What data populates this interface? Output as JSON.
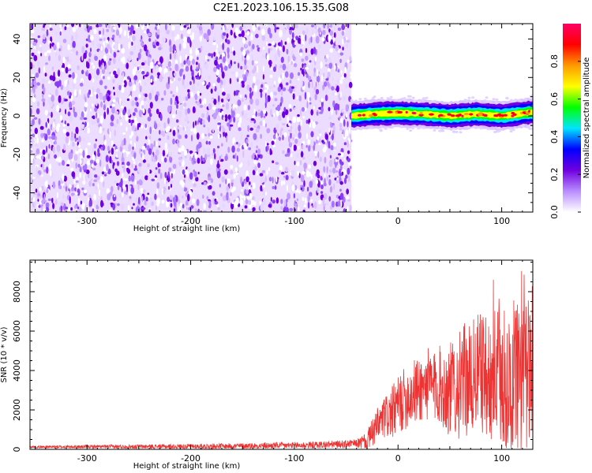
{
  "title": "C2E1.2023.106.15.35.G08",
  "chart_data": [
    {
      "type": "heatmap",
      "xlabel": "Height of straight line (km)",
      "ylabel": "Frequency (Hz)",
      "xlim": [
        -355,
        130
      ],
      "ylim": [
        -50,
        48
      ],
      "xticks": [
        -300,
        -200,
        -100,
        0,
        100
      ],
      "yticks": [
        -40,
        -20,
        0,
        20,
        40
      ],
      "noise_region_x": [
        -355,
        -45
      ],
      "signal_region_x": [
        -45,
        130
      ],
      "signal": {
        "center_freq_hz": 0,
        "band_halfwidth_hz": [
          3,
          6
        ],
        "profile": [
          {
            "x": -45,
            "center": 0
          },
          {
            "x": -25,
            "center": 1
          },
          {
            "x": 0,
            "center": 1.5
          },
          {
            "x": 25,
            "center": 1
          },
          {
            "x": 50,
            "center": 0
          },
          {
            "x": 75,
            "center": 1
          },
          {
            "x": 100,
            "center": 0
          },
          {
            "x": 130,
            "center": 2
          }
        ]
      },
      "colorbar": {
        "label": "Normalized spectral amplitude",
        "range": [
          0,
          1
        ],
        "ticks": [
          0.0,
          0.2,
          0.4,
          0.6,
          0.8
        ],
        "tick_labels": [
          "0.0",
          "0.2",
          "0.4",
          "0.6",
          "0.8"
        ],
        "colors": [
          "#ffffff",
          "#b98cff",
          "#7000e0",
          "#0000ff",
          "#00e5ff",
          "#00ff00",
          "#ffff00",
          "#ff9a00",
          "#ff0000",
          "#ff0066"
        ]
      },
      "grid": false
    },
    {
      "type": "line",
      "xlabel": "Height of straight line (km)",
      "ylabel": "SNR (10 * v/v)",
      "xlim": [
        -355,
        130
      ],
      "ylim": [
        0,
        9600
      ],
      "xticks": [
        -300,
        -200,
        -100,
        0,
        100
      ],
      "yticks": [
        0,
        2000,
        4000,
        6000,
        8000
      ],
      "color": "#ee3333",
      "series": [
        {
          "x": [
            -355,
            -300,
            -250,
            -200,
            -150,
            -100,
            -80,
            -60,
            -40,
            -30,
            -25,
            -20,
            -15,
            -10,
            -5,
            0,
            5,
            10,
            15,
            20,
            25,
            30,
            35,
            40,
            45,
            50,
            55,
            60,
            65,
            70,
            75,
            80,
            85,
            90,
            95,
            100,
            105,
            110,
            115,
            120,
            125,
            130
          ],
          "values": [
            120,
            130,
            140,
            150,
            170,
            200,
            220,
            250,
            300,
            400,
            800,
            1200,
            1500,
            1700,
            1900,
            2200,
            2500,
            2700,
            2900,
            3000,
            3200,
            3300,
            3100,
            3300,
            3000,
            3000,
            3300,
            3200,
            3600,
            3400,
            3800,
            4000,
            3600,
            3700,
            3800,
            3400,
            3600,
            3300,
            3500,
            3000,
            3200,
            3500
          ]
        }
      ],
      "noise_envelope": [
        {
          "x": -355,
          "amp": 60
        },
        {
          "x": -40,
          "amp": 200
        },
        {
          "x": -20,
          "amp": 900
        },
        {
          "x": 0,
          "amp": 1500
        },
        {
          "x": 40,
          "amp": 2000
        },
        {
          "x": 60,
          "amp": 2800
        },
        {
          "x": 90,
          "amp": 3200
        },
        {
          "x": 110,
          "amp": 4200
        },
        {
          "x": 130,
          "amp": 4500
        }
      ],
      "grid": false
    }
  ]
}
